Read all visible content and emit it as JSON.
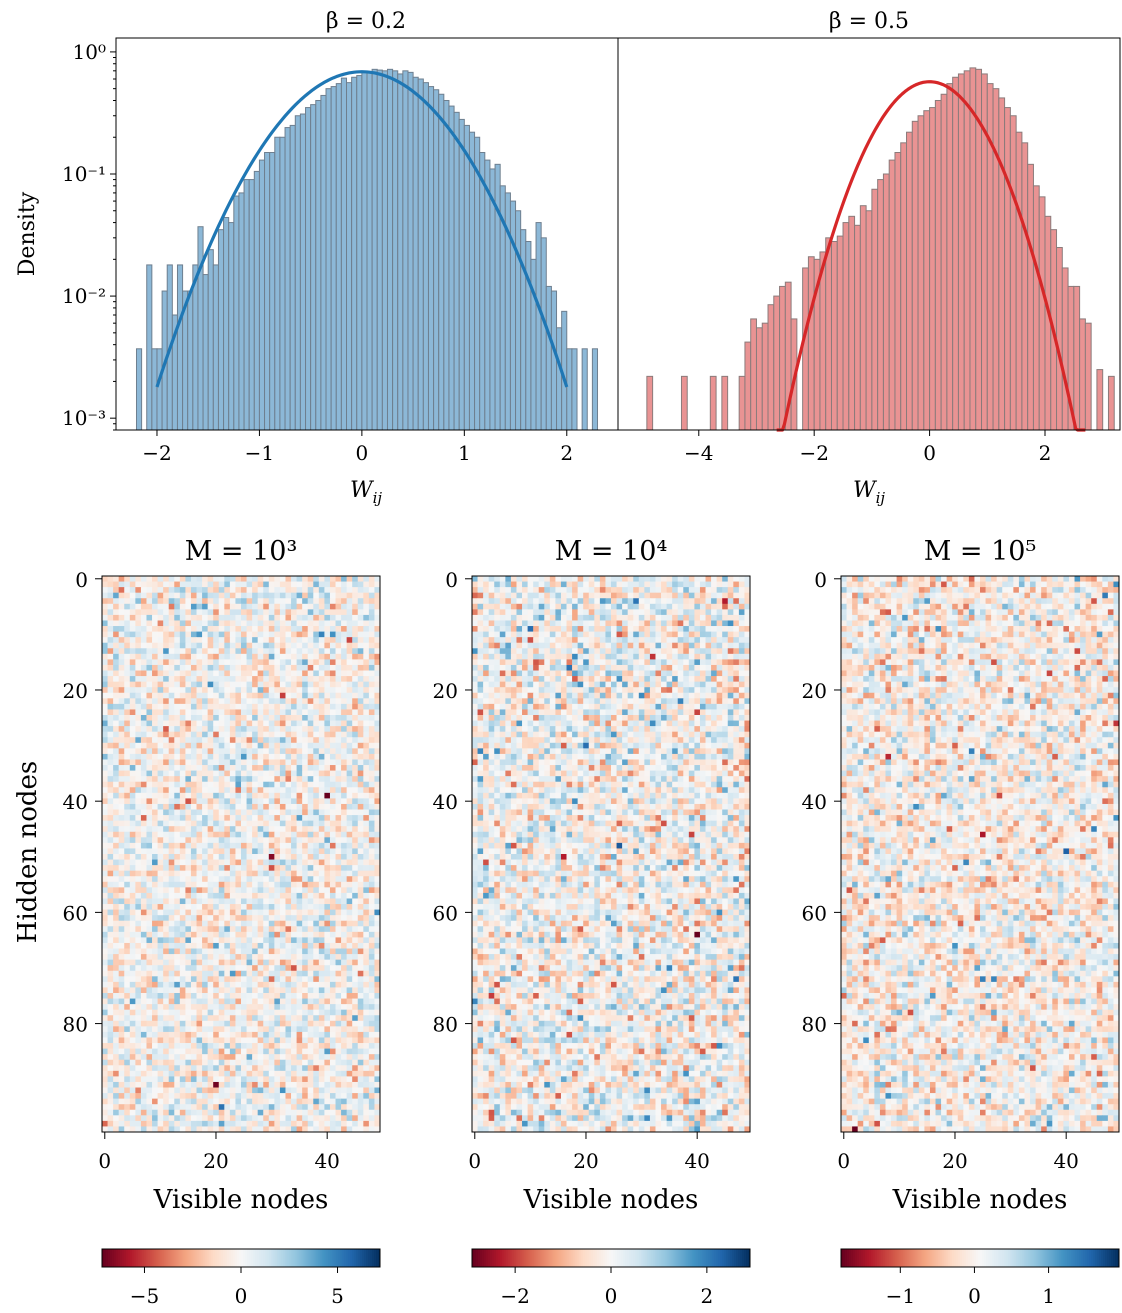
{
  "chart_data": [
    {
      "type": "histogram",
      "title": "β = 0.2",
      "xlabel": "W_ij",
      "ylabel": "Density",
      "yscale": "log",
      "ylim": [
        0.0008,
        1.3
      ],
      "xlim": [
        -2.4,
        2.5
      ],
      "xticks": [
        "−2",
        "−1",
        "0",
        "1",
        "2"
      ],
      "yticks": [
        "10⁻³",
        "10⁻²",
        "10⁻¹",
        "10⁰"
      ],
      "hist_color": "#8cb8d7",
      "hist_edge": "#6e7f8f",
      "fit_color": "#1f77b4",
      "fit": {
        "mu": 0.0,
        "sigma": 0.58,
        "x_range": [
          -2.0,
          2.0
        ]
      },
      "bins": {
        "start": -2.2,
        "width": 0.05,
        "densities": [
          0.0037,
          0.0,
          0.018,
          0.0037,
          0.0037,
          0.011,
          0.018,
          0.007,
          0.018,
          0.011,
          0.011,
          0.018,
          0.037,
          0.015,
          0.024,
          0.018,
          0.035,
          0.044,
          0.04,
          0.066,
          0.07,
          0.09,
          0.09,
          0.105,
          0.13,
          0.15,
          0.15,
          0.2,
          0.2,
          0.24,
          0.25,
          0.3,
          0.31,
          0.35,
          0.37,
          0.4,
          0.44,
          0.5,
          0.52,
          0.55,
          0.61,
          0.56,
          0.62,
          0.64,
          0.68,
          0.69,
          0.72,
          0.71,
          0.7,
          0.72,
          0.7,
          0.66,
          0.7,
          0.68,
          0.62,
          0.6,
          0.56,
          0.52,
          0.49,
          0.45,
          0.4,
          0.36,
          0.32,
          0.28,
          0.25,
          0.22,
          0.2,
          0.15,
          0.13,
          0.11,
          0.12,
          0.08,
          0.07,
          0.06,
          0.05,
          0.035,
          0.028,
          0.02,
          0.04,
          0.03,
          0.012,
          0.011,
          0.0055,
          0.0075,
          0.0037,
          0.0037,
          0.0,
          0.0037,
          0.0,
          0.0037
        ]
      }
    },
    {
      "type": "histogram",
      "title": "β = 0.5",
      "xlabel": "W_ij",
      "ylabel": "",
      "yscale": "log",
      "ylim": [
        0.0008,
        1.3
      ],
      "xlim": [
        -5.4,
        3.3
      ],
      "xticks": [
        "−4",
        "−2",
        "0",
        "2"
      ],
      "hist_color": "#e99393",
      "hist_edge": "#8b7b7b",
      "fit_color": "#d62728",
      "fit": {
        "mu": 0.0,
        "sigma": 0.7,
        "x_range": [
          -2.65,
          2.7
        ]
      },
      "bins": {
        "start": -4.9,
        "width": 0.1,
        "densities": [
          0.0022,
          0.0,
          0.0,
          0.0,
          0.0,
          0.0,
          0.0022,
          0.0,
          0.0,
          0.0,
          0.0,
          0.0022,
          0.0,
          0.0022,
          0.0,
          0.0,
          0.0022,
          0.0042,
          0.0065,
          0.0055,
          0.006,
          0.0085,
          0.01,
          0.012,
          0.013,
          0.0065,
          0.0,
          0.017,
          0.021,
          0.02,
          0.023,
          0.03,
          0.028,
          0.031,
          0.04,
          0.045,
          0.038,
          0.055,
          0.05,
          0.075,
          0.09,
          0.1,
          0.13,
          0.15,
          0.18,
          0.22,
          0.27,
          0.3,
          0.33,
          0.35,
          0.4,
          0.45,
          0.55,
          0.62,
          0.66,
          0.7,
          0.74,
          0.72,
          0.66,
          0.55,
          0.5,
          0.42,
          0.35,
          0.3,
          0.22,
          0.18,
          0.12,
          0.08,
          0.065,
          0.045,
          0.035,
          0.025,
          0.017,
          0.012,
          0.012,
          0.0065,
          0.006,
          0.0,
          0.0025,
          0.0,
          0.0022,
          0.0,
          0.0,
          0.0,
          0.0022
        ]
      }
    },
    {
      "type": "heatmap",
      "title": "M = 10³",
      "xlabel": "Visible nodes",
      "ylabel": "Hidden nodes",
      "rows": 100,
      "cols": 50,
      "xticks": [
        0,
        20,
        40
      ],
      "yticks": [
        0,
        20,
        40,
        60,
        80
      ],
      "colormap": "RdBu",
      "vmin": -7.2,
      "vmax": 7.2,
      "colorbar_ticks": [
        {
          "value": -5,
          "label": "−5"
        },
        {
          "value": 0,
          "label": "0"
        },
        {
          "value": 5,
          "label": "5"
        }
      ],
      "cells": {
        "distribution": "normal",
        "mu": 0.0,
        "sigma": 1.4,
        "seed": 11,
        "outliers": [
          [
            39,
            40,
            -7.2
          ],
          [
            50,
            30,
            -6.6
          ],
          [
            91,
            20,
            -7.0
          ],
          [
            21,
            32,
            -5.0
          ],
          [
            60,
            49,
            4.5
          ]
        ]
      }
    },
    {
      "type": "heatmap",
      "title": "M = 10⁴",
      "xlabel": "Visible nodes",
      "ylabel": "",
      "rows": 100,
      "cols": 50,
      "xticks": [
        0,
        20,
        40
      ],
      "yticks": [
        0,
        20,
        40,
        60,
        80
      ],
      "colormap": "RdBu",
      "vmin": -2.9,
      "vmax": 2.9,
      "colorbar_ticks": [
        {
          "value": -2,
          "label": "−2"
        },
        {
          "value": 0,
          "label": "0"
        },
        {
          "value": 2,
          "label": "2"
        }
      ],
      "cells": {
        "distribution": "normal",
        "mu": 0.0,
        "sigma": 0.65,
        "seed": 23,
        "outliers": [
          [
            64,
            40,
            -2.9
          ],
          [
            4,
            45,
            -2.3
          ],
          [
            14,
            32,
            -2.1
          ],
          [
            30,
            20,
            2.2
          ]
        ]
      }
    },
    {
      "type": "heatmap",
      "title": "M = 10⁵",
      "xlabel": "Visible nodes",
      "ylabel": "",
      "rows": 100,
      "cols": 50,
      "xticks": [
        0,
        20,
        40
      ],
      "yticks": [
        0,
        20,
        40,
        60,
        80
      ],
      "colormap": "RdBu",
      "vmin": -1.8,
      "vmax": 1.95,
      "colorbar_ticks": [
        {
          "value": -1,
          "label": "−1"
        },
        {
          "value": 0,
          "label": "0"
        },
        {
          "value": 1,
          "label": "1"
        }
      ],
      "cells": {
        "distribution": "normal",
        "mu": 0.0,
        "sigma": 0.4,
        "seed": 37,
        "outliers": [
          [
            99,
            2,
            -1.8
          ],
          [
            49,
            40,
            1.6
          ],
          [
            3,
            47,
            1.4
          ]
        ]
      }
    }
  ]
}
